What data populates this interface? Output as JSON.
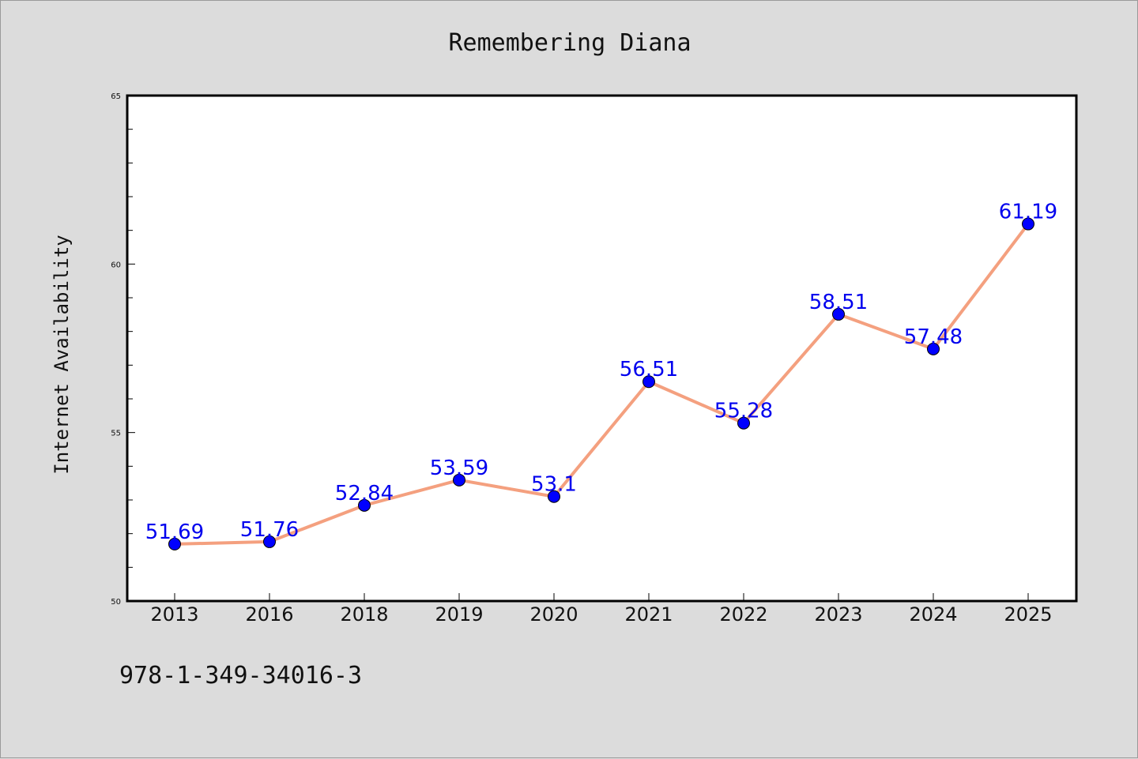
{
  "chart_data": {
    "type": "line",
    "title": "Remembering Diana",
    "xlabel": "",
    "ylabel": "Internet Availability",
    "categories": [
      "2013",
      "2016",
      "2018",
      "2019",
      "2020",
      "2021",
      "2022",
      "2023",
      "2024",
      "2025"
    ],
    "values": [
      51.69,
      51.76,
      52.84,
      53.59,
      53.1,
      56.51,
      55.28,
      58.51,
      57.48,
      61.19
    ],
    "data_labels": [
      "51.69",
      "51.76",
      "52.84",
      "53.59",
      "53.1",
      "56.51",
      "55.28",
      "58.51",
      "57.48",
      "61.19"
    ],
    "ylim": [
      50,
      65
    ],
    "yticks": [
      "50",
      "55",
      "60",
      "65"
    ],
    "grid": false,
    "legend": "none",
    "line_color": "#f4a07f",
    "marker_color": "#0000ff",
    "label_color": "#0000ee",
    "background_color": "#dcdcdc",
    "plot_background": "#ffffff"
  },
  "footer": {
    "code": "978-1-349-34016-3"
  }
}
